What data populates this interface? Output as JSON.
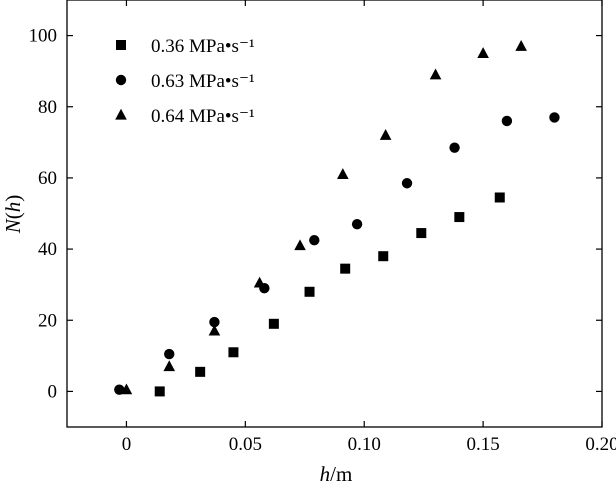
{
  "chart_data": {
    "type": "scatter",
    "title": "",
    "xlabel": {
      "var": "h",
      "sep": "/",
      "unit": "m"
    },
    "ylabel": {
      "func": "N",
      "arg": "h"
    },
    "xlim": [
      -0.025,
      0.2
    ],
    "ylim": [
      -10,
      110
    ],
    "xticks": [
      0,
      0.05,
      0.1,
      0.15,
      0.2
    ],
    "xtick_labels": [
      "0",
      "0.05",
      "0.10",
      "0.15",
      "0.20"
    ],
    "yticks": [
      0,
      20,
      40,
      60,
      80,
      100
    ],
    "ytick_labels": [
      "0",
      "20",
      "40",
      "60",
      "80",
      "100"
    ],
    "grid": false,
    "legend_position": "top-left",
    "series": [
      {
        "name": "0.36 MPa•s⁻¹",
        "marker": "square",
        "points": [
          [
            0.014,
            0
          ],
          [
            0.031,
            5.5
          ],
          [
            0.045,
            11
          ],
          [
            0.062,
            19
          ],
          [
            0.077,
            28
          ],
          [
            0.092,
            34.5
          ],
          [
            0.108,
            38
          ],
          [
            0.124,
            44.5
          ],
          [
            0.14,
            49
          ],
          [
            0.157,
            54.5
          ]
        ]
      },
      {
        "name": "0.63 MPa•s⁻¹",
        "marker": "circle",
        "points": [
          [
            -0.003,
            0.5
          ],
          [
            0.018,
            10.5
          ],
          [
            0.037,
            19.5
          ],
          [
            0.058,
            29
          ],
          [
            0.079,
            42.5
          ],
          [
            0.097,
            47
          ],
          [
            0.118,
            58.5
          ],
          [
            0.138,
            68.5
          ],
          [
            0.16,
            76
          ],
          [
            0.18,
            77
          ]
        ]
      },
      {
        "name": "0.64 MPa•s⁻¹",
        "marker": "triangle",
        "points": [
          [
            0,
            0.5
          ],
          [
            0.018,
            7
          ],
          [
            0.037,
            17
          ],
          [
            0.056,
            30.5
          ],
          [
            0.073,
            41
          ],
          [
            0.091,
            61
          ],
          [
            0.109,
            72
          ],
          [
            0.13,
            89
          ],
          [
            0.15,
            95
          ],
          [
            0.166,
            97
          ]
        ]
      }
    ]
  }
}
